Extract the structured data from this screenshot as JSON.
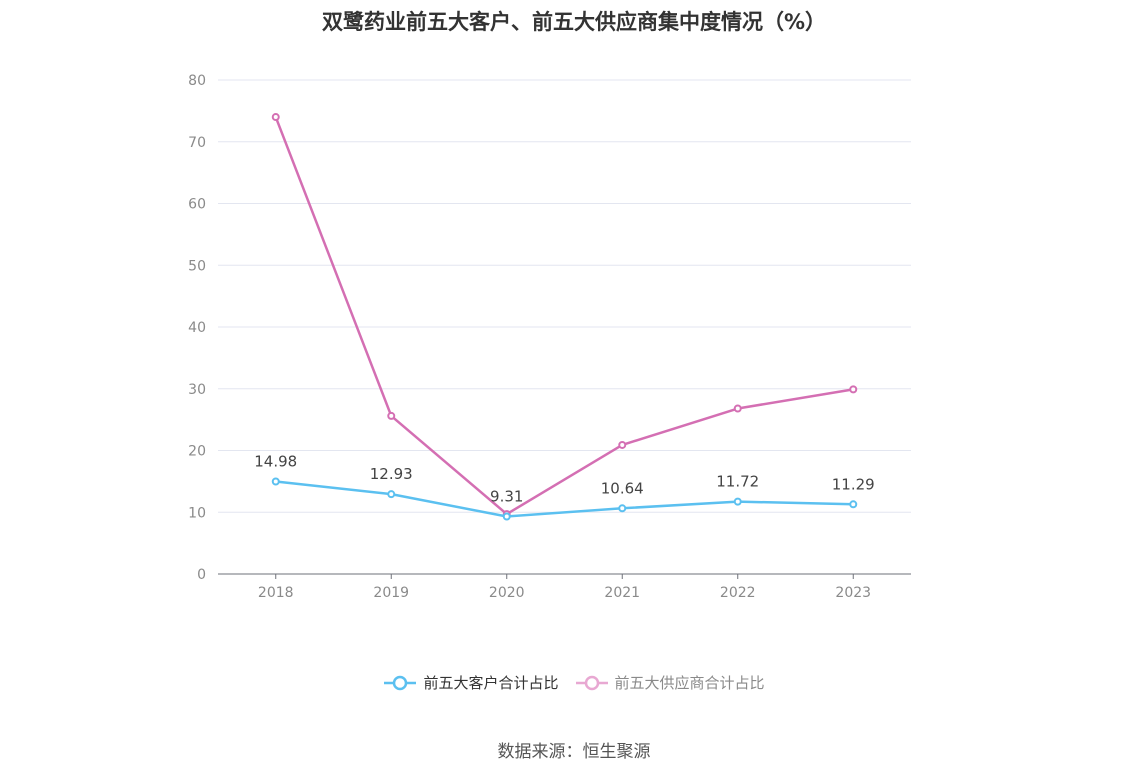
{
  "chart_data": {
    "type": "line",
    "title": "双鹭药业前五大客户、前五大供应商集中度情况（%）",
    "categories": [
      "2018",
      "2019",
      "2020",
      "2021",
      "2022",
      "2023"
    ],
    "ylim": [
      0,
      80
    ],
    "yticks": [
      0,
      10,
      20,
      30,
      40,
      50,
      60,
      70,
      80
    ],
    "grid": true,
    "legend_position": "bottom",
    "series": [
      {
        "name": "前五大客户合计占比",
        "color": "#5bc0f0",
        "values": [
          14.98,
          12.93,
          9.31,
          10.64,
          11.72,
          11.29
        ],
        "labels": [
          "14.98",
          "12.93",
          "9.31",
          "10.64",
          "11.72",
          "11.29"
        ]
      },
      {
        "name": "前五大供应商合计占比",
        "color": "#d46fb3",
        "values": [
          74.0,
          25.6,
          9.7,
          20.9,
          26.8,
          29.9
        ]
      }
    ]
  },
  "source": "数据来源：恒生聚源"
}
